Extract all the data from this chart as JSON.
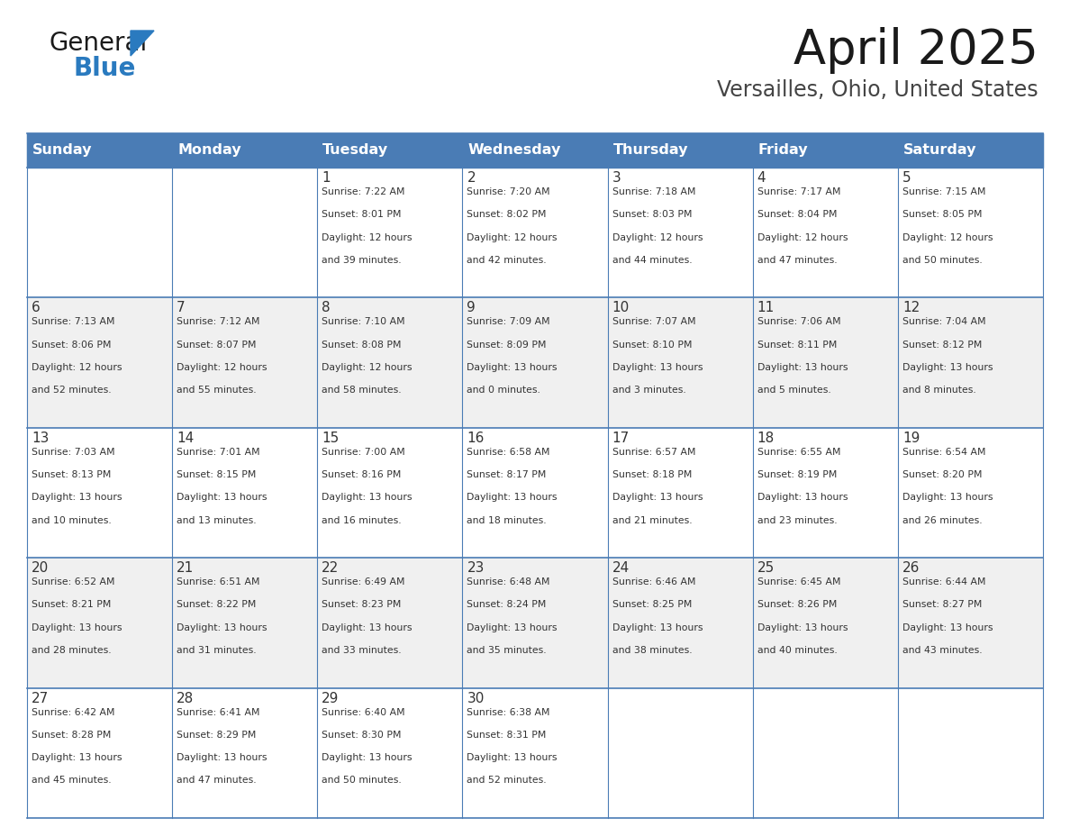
{
  "title": "April 2025",
  "subtitle": "Versailles, Ohio, United States",
  "days_of_week": [
    "Sunday",
    "Monday",
    "Tuesday",
    "Wednesday",
    "Thursday",
    "Friday",
    "Saturday"
  ],
  "header_bg": "#4a7cb5",
  "header_text": "#ffffff",
  "cell_bg_odd": "#f0f0f0",
  "cell_bg_even": "#ffffff",
  "border_color": "#4a7cb5",
  "text_color": "#333333",
  "day_num_color": "#333333",
  "weeks": [
    [
      {
        "day": "",
        "info": ""
      },
      {
        "day": "",
        "info": ""
      },
      {
        "day": "1",
        "info": "Sunrise: 7:22 AM\nSunset: 8:01 PM\nDaylight: 12 hours\nand 39 minutes."
      },
      {
        "day": "2",
        "info": "Sunrise: 7:20 AM\nSunset: 8:02 PM\nDaylight: 12 hours\nand 42 minutes."
      },
      {
        "day": "3",
        "info": "Sunrise: 7:18 AM\nSunset: 8:03 PM\nDaylight: 12 hours\nand 44 minutes."
      },
      {
        "day": "4",
        "info": "Sunrise: 7:17 AM\nSunset: 8:04 PM\nDaylight: 12 hours\nand 47 minutes."
      },
      {
        "day": "5",
        "info": "Sunrise: 7:15 AM\nSunset: 8:05 PM\nDaylight: 12 hours\nand 50 minutes."
      }
    ],
    [
      {
        "day": "6",
        "info": "Sunrise: 7:13 AM\nSunset: 8:06 PM\nDaylight: 12 hours\nand 52 minutes."
      },
      {
        "day": "7",
        "info": "Sunrise: 7:12 AM\nSunset: 8:07 PM\nDaylight: 12 hours\nand 55 minutes."
      },
      {
        "day": "8",
        "info": "Sunrise: 7:10 AM\nSunset: 8:08 PM\nDaylight: 12 hours\nand 58 minutes."
      },
      {
        "day": "9",
        "info": "Sunrise: 7:09 AM\nSunset: 8:09 PM\nDaylight: 13 hours\nand 0 minutes."
      },
      {
        "day": "10",
        "info": "Sunrise: 7:07 AM\nSunset: 8:10 PM\nDaylight: 13 hours\nand 3 minutes."
      },
      {
        "day": "11",
        "info": "Sunrise: 7:06 AM\nSunset: 8:11 PM\nDaylight: 13 hours\nand 5 minutes."
      },
      {
        "day": "12",
        "info": "Sunrise: 7:04 AM\nSunset: 8:12 PM\nDaylight: 13 hours\nand 8 minutes."
      }
    ],
    [
      {
        "day": "13",
        "info": "Sunrise: 7:03 AM\nSunset: 8:13 PM\nDaylight: 13 hours\nand 10 minutes."
      },
      {
        "day": "14",
        "info": "Sunrise: 7:01 AM\nSunset: 8:15 PM\nDaylight: 13 hours\nand 13 minutes."
      },
      {
        "day": "15",
        "info": "Sunrise: 7:00 AM\nSunset: 8:16 PM\nDaylight: 13 hours\nand 16 minutes."
      },
      {
        "day": "16",
        "info": "Sunrise: 6:58 AM\nSunset: 8:17 PM\nDaylight: 13 hours\nand 18 minutes."
      },
      {
        "day": "17",
        "info": "Sunrise: 6:57 AM\nSunset: 8:18 PM\nDaylight: 13 hours\nand 21 minutes."
      },
      {
        "day": "18",
        "info": "Sunrise: 6:55 AM\nSunset: 8:19 PM\nDaylight: 13 hours\nand 23 minutes."
      },
      {
        "day": "19",
        "info": "Sunrise: 6:54 AM\nSunset: 8:20 PM\nDaylight: 13 hours\nand 26 minutes."
      }
    ],
    [
      {
        "day": "20",
        "info": "Sunrise: 6:52 AM\nSunset: 8:21 PM\nDaylight: 13 hours\nand 28 minutes."
      },
      {
        "day": "21",
        "info": "Sunrise: 6:51 AM\nSunset: 8:22 PM\nDaylight: 13 hours\nand 31 minutes."
      },
      {
        "day": "22",
        "info": "Sunrise: 6:49 AM\nSunset: 8:23 PM\nDaylight: 13 hours\nand 33 minutes."
      },
      {
        "day": "23",
        "info": "Sunrise: 6:48 AM\nSunset: 8:24 PM\nDaylight: 13 hours\nand 35 minutes."
      },
      {
        "day": "24",
        "info": "Sunrise: 6:46 AM\nSunset: 8:25 PM\nDaylight: 13 hours\nand 38 minutes."
      },
      {
        "day": "25",
        "info": "Sunrise: 6:45 AM\nSunset: 8:26 PM\nDaylight: 13 hours\nand 40 minutes."
      },
      {
        "day": "26",
        "info": "Sunrise: 6:44 AM\nSunset: 8:27 PM\nDaylight: 13 hours\nand 43 minutes."
      }
    ],
    [
      {
        "day": "27",
        "info": "Sunrise: 6:42 AM\nSunset: 8:28 PM\nDaylight: 13 hours\nand 45 minutes."
      },
      {
        "day": "28",
        "info": "Sunrise: 6:41 AM\nSunset: 8:29 PM\nDaylight: 13 hours\nand 47 minutes."
      },
      {
        "day": "29",
        "info": "Sunrise: 6:40 AM\nSunset: 8:30 PM\nDaylight: 13 hours\nand 50 minutes."
      },
      {
        "day": "30",
        "info": "Sunrise: 6:38 AM\nSunset: 8:31 PM\nDaylight: 13 hours\nand 52 minutes."
      },
      {
        "day": "",
        "info": ""
      },
      {
        "day": "",
        "info": ""
      },
      {
        "day": "",
        "info": ""
      }
    ]
  ],
  "logo_color_general": "#1a1a1a",
  "logo_color_blue": "#2a7abf",
  "logo_triangle_color": "#2a7abf",
  "title_color": "#1a1a1a",
  "subtitle_color": "#444444"
}
